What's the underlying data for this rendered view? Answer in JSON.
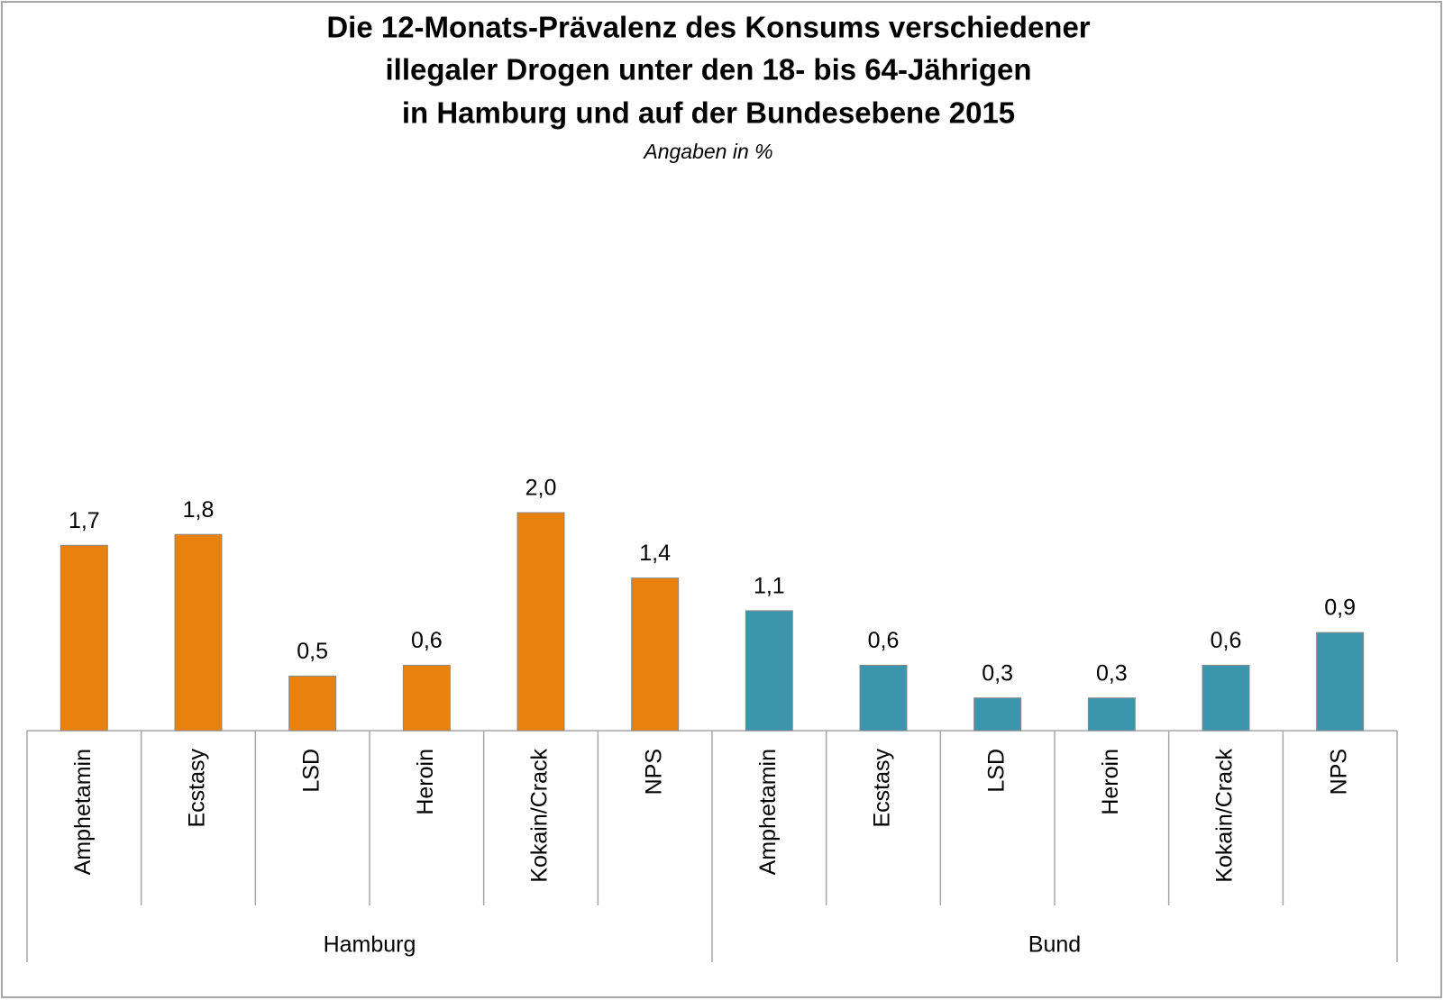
{
  "chart_data": {
    "type": "bar",
    "title": [
      "Die 12-Monats-Prävalenz des Konsums verschiedener",
      "illegaler Drogen unter den 18- bis 64-Jährigen",
      "in Hamburg und auf der Bundesebene 2015"
    ],
    "subtitle": "Angaben in %",
    "series": [
      {
        "name": "Hamburg",
        "color": "#e8820c",
        "categories": [
          "Amphetamin",
          "Ecstasy",
          "LSD",
          "Heroin",
          "Kokain/Crack",
          "NPS"
        ],
        "values": [
          1.7,
          1.8,
          0.5,
          0.6,
          2.0,
          1.4
        ],
        "value_labels": [
          "1,7",
          "1,8",
          "0,5",
          "0,6",
          "2,0",
          "1,4"
        ]
      },
      {
        "name": "Bund",
        "color": "#3a95ad",
        "categories": [
          "Amphetamin",
          "Ecstasy",
          "LSD",
          "Heroin",
          "Kokain/Crack",
          "NPS"
        ],
        "values": [
          1.1,
          0.6,
          0.3,
          0.3,
          0.6,
          0.9
        ],
        "value_labels": [
          "1,1",
          "0,6",
          "0,3",
          "0,3",
          "0,6",
          "0,9"
        ]
      }
    ]
  }
}
